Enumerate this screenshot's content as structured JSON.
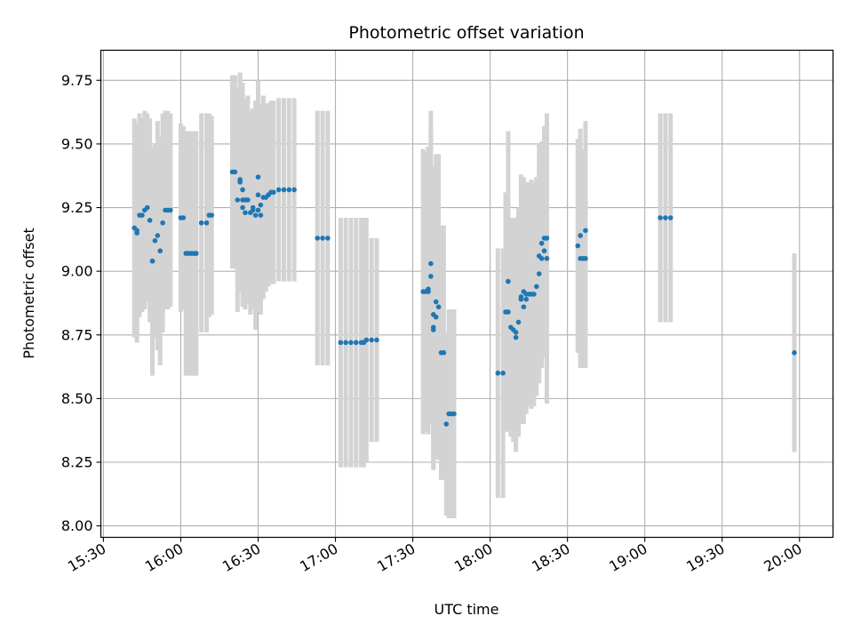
{
  "chart_data": {
    "type": "scatter",
    "title": "Photometric offset variation",
    "xlabel": "UTC time",
    "ylabel": "Photometric offset",
    "xlim": [
      "15:29",
      "20:13"
    ],
    "ylim": [
      7.955,
      9.868
    ],
    "grid": true,
    "x_ticks": [
      "15:30",
      "16:00",
      "16:30",
      "17:00",
      "17:30",
      "18:00",
      "18:30",
      "19:00",
      "19:30",
      "20:00"
    ],
    "y_ticks": [
      "8.00",
      "8.25",
      "8.50",
      "8.75",
      "9.00",
      "9.25",
      "9.50",
      "9.75"
    ],
    "colors": {
      "point": "#1f77b4",
      "errorbar": "#d3d3d3",
      "grid": "#b0b0b0"
    },
    "series": [
      {
        "points": [
          {
            "x": "15:42",
            "y": 9.17,
            "err": 0.43
          },
          {
            "x": "15:43",
            "y": 9.16,
            "err": 0.42
          },
          {
            "x": "15:43",
            "y": 9.15,
            "err": 0.43
          },
          {
            "x": "15:44",
            "y": 9.22,
            "err": 0.4
          },
          {
            "x": "15:45",
            "y": 9.22,
            "err": 0.38
          },
          {
            "x": "15:46",
            "y": 9.24,
            "err": 0.39
          },
          {
            "x": "15:47",
            "y": 9.25,
            "err": 0.37
          },
          {
            "x": "15:48",
            "y": 9.2,
            "err": 0.4
          },
          {
            "x": "15:49",
            "y": 9.04,
            "err": 0.43
          },
          {
            "x": "15:49",
            "y": 9.04,
            "err": 0.45
          },
          {
            "x": "15:50",
            "y": 9.12,
            "err": 0.38
          },
          {
            "x": "15:51",
            "y": 9.14,
            "err": 0.45
          },
          {
            "x": "15:52",
            "y": 9.08,
            "err": 0.45
          },
          {
            "x": "15:53",
            "y": 9.19,
            "err": 0.43
          },
          {
            "x": "15:54",
            "y": 9.24,
            "err": 0.39
          },
          {
            "x": "15:55",
            "y": 9.24,
            "err": 0.39
          },
          {
            "x": "15:56",
            "y": 9.24,
            "err": 0.38
          },
          {
            "x": "16:00",
            "y": 9.21,
            "err": 0.37
          },
          {
            "x": "16:01",
            "y": 9.21,
            "err": 0.36
          },
          {
            "x": "16:02",
            "y": 9.07,
            "err": 0.48
          },
          {
            "x": "16:03",
            "y": 9.07,
            "err": 0.48
          },
          {
            "x": "16:04",
            "y": 9.07,
            "err": 0.48
          },
          {
            "x": "16:05",
            "y": 9.07,
            "err": 0.48
          },
          {
            "x": "16:06",
            "y": 9.07,
            "err": 0.48
          },
          {
            "x": "16:08",
            "y": 9.19,
            "err": 0.43
          },
          {
            "x": "16:10",
            "y": 9.19,
            "err": 0.43
          },
          {
            "x": "16:11",
            "y": 9.22,
            "err": 0.4
          },
          {
            "x": "16:12",
            "y": 9.22,
            "err": 0.39
          },
          {
            "x": "16:20",
            "y": 9.39,
            "err": 0.38
          },
          {
            "x": "16:21",
            "y": 9.39,
            "err": 0.38
          },
          {
            "x": "16:22",
            "y": 9.28,
            "err": 0.44
          },
          {
            "x": "16:23",
            "y": 9.36,
            "err": 0.42
          },
          {
            "x": "16:23",
            "y": 9.35,
            "err": 0.43
          },
          {
            "x": "16:24",
            "y": 9.25,
            "err": 0.39
          },
          {
            "x": "16:24",
            "y": 9.28,
            "err": 0.41
          },
          {
            "x": "16:24",
            "y": 9.32,
            "err": 0.42
          },
          {
            "x": "16:25",
            "y": 9.23,
            "err": 0.38
          },
          {
            "x": "16:25",
            "y": 9.28,
            "err": 0.4
          },
          {
            "x": "16:26",
            "y": 9.28,
            "err": 0.41
          },
          {
            "x": "16:27",
            "y": 9.23,
            "err": 0.4
          },
          {
            "x": "16:28",
            "y": 9.24,
            "err": 0.39
          },
          {
            "x": "16:28",
            "y": 9.25,
            "err": 0.39
          },
          {
            "x": "16:29",
            "y": 9.22,
            "err": 0.45
          },
          {
            "x": "16:30",
            "y": 9.24,
            "err": 0.4
          },
          {
            "x": "16:30",
            "y": 9.37,
            "err": 0.38
          },
          {
            "x": "16:30",
            "y": 9.3,
            "err": 0.39
          },
          {
            "x": "16:31",
            "y": 9.26,
            "err": 0.4
          },
          {
            "x": "16:31",
            "y": 9.22,
            "err": 0.39
          },
          {
            "x": "16:32",
            "y": 9.29,
            "err": 0.4
          },
          {
            "x": "16:33",
            "y": 9.29,
            "err": 0.37
          },
          {
            "x": "16:34",
            "y": 9.3,
            "err": 0.36
          },
          {
            "x": "16:35",
            "y": 9.31,
            "err": 0.36
          },
          {
            "x": "16:36",
            "y": 9.31,
            "err": 0.36
          },
          {
            "x": "16:38",
            "y": 9.32,
            "err": 0.36
          },
          {
            "x": "16:40",
            "y": 9.32,
            "err": 0.36
          },
          {
            "x": "16:42",
            "y": 9.32,
            "err": 0.36
          },
          {
            "x": "16:44",
            "y": 9.32,
            "err": 0.36
          },
          {
            "x": "16:53",
            "y": 9.13,
            "err": 0.5
          },
          {
            "x": "16:55",
            "y": 9.13,
            "err": 0.5
          },
          {
            "x": "16:57",
            "y": 9.13,
            "err": 0.5
          },
          {
            "x": "17:02",
            "y": 8.72,
            "err": 0.49
          },
          {
            "x": "17:04",
            "y": 8.72,
            "err": 0.49
          },
          {
            "x": "17:06",
            "y": 8.72,
            "err": 0.49
          },
          {
            "x": "17:08",
            "y": 8.72,
            "err": 0.49
          },
          {
            "x": "17:10",
            "y": 8.72,
            "err": 0.49
          },
          {
            "x": "17:11",
            "y": 8.72,
            "err": 0.49
          },
          {
            "x": "17:12",
            "y": 8.73,
            "err": 0.48
          },
          {
            "x": "17:14",
            "y": 8.73,
            "err": 0.4
          },
          {
            "x": "17:16",
            "y": 8.73,
            "err": 0.4
          },
          {
            "x": "17:34",
            "y": 8.92,
            "err": 0.56
          },
          {
            "x": "17:35",
            "y": 8.92,
            "err": 0.55
          },
          {
            "x": "17:36",
            "y": 8.92,
            "err": 0.56
          },
          {
            "x": "17:36",
            "y": 8.93,
            "err": 0.56
          },
          {
            "x": "17:37",
            "y": 9.03,
            "err": 0.6
          },
          {
            "x": "17:37",
            "y": 8.98,
            "err": 0.58
          },
          {
            "x": "17:38",
            "y": 8.78,
            "err": 0.56
          },
          {
            "x": "17:38",
            "y": 8.77,
            "err": 0.55
          },
          {
            "x": "17:38",
            "y": 8.83,
            "err": 0.58
          },
          {
            "x": "17:39",
            "y": 8.82,
            "err": 0.56
          },
          {
            "x": "17:39",
            "y": 8.88,
            "err": 0.58
          },
          {
            "x": "17:40",
            "y": 8.86,
            "err": 0.6
          },
          {
            "x": "17:41",
            "y": 8.68,
            "err": 0.5
          },
          {
            "x": "17:42",
            "y": 8.68,
            "err": 0.5
          },
          {
            "x": "17:43",
            "y": 8.4,
            "err": 0.36
          },
          {
            "x": "17:44",
            "y": 8.44,
            "err": 0.41
          },
          {
            "x": "17:45",
            "y": 8.44,
            "err": 0.41
          },
          {
            "x": "17:46",
            "y": 8.44,
            "err": 0.41
          },
          {
            "x": "18:03",
            "y": 8.6,
            "err": 0.49
          },
          {
            "x": "18:05",
            "y": 8.6,
            "err": 0.49
          },
          {
            "x": "18:06",
            "y": 8.84,
            "err": 0.47
          },
          {
            "x": "18:07",
            "y": 8.84,
            "err": 0.47
          },
          {
            "x": "18:07",
            "y": 8.96,
            "err": 0.59
          },
          {
            "x": "18:08",
            "y": 8.78,
            "err": 0.43
          },
          {
            "x": "18:09",
            "y": 8.77,
            "err": 0.44
          },
          {
            "x": "18:10",
            "y": 8.76,
            "err": 0.45
          },
          {
            "x": "18:10",
            "y": 8.74,
            "err": 0.45
          },
          {
            "x": "18:11",
            "y": 8.8,
            "err": 0.45
          },
          {
            "x": "18:12",
            "y": 8.89,
            "err": 0.49
          },
          {
            "x": "18:12",
            "y": 8.9,
            "err": 0.46
          },
          {
            "x": "18:13",
            "y": 8.92,
            "err": 0.45
          },
          {
            "x": "18:13",
            "y": 8.86,
            "err": 0.46
          },
          {
            "x": "18:14",
            "y": 8.91,
            "err": 0.44
          },
          {
            "x": "18:14",
            "y": 8.89,
            "err": 0.45
          },
          {
            "x": "18:15",
            "y": 8.91,
            "err": 0.44
          },
          {
            "x": "18:16",
            "y": 8.91,
            "err": 0.45
          },
          {
            "x": "18:17",
            "y": 8.91,
            "err": 0.44
          },
          {
            "x": "18:18",
            "y": 8.94,
            "err": 0.43
          },
          {
            "x": "18:19",
            "y": 8.99,
            "err": 0.43
          },
          {
            "x": "18:19",
            "y": 9.06,
            "err": 0.44
          },
          {
            "x": "18:20",
            "y": 9.11,
            "err": 0.4
          },
          {
            "x": "18:20",
            "y": 9.05,
            "err": 0.43
          },
          {
            "x": "18:21",
            "y": 9.08,
            "err": 0.42
          },
          {
            "x": "18:21",
            "y": 9.13,
            "err": 0.44
          },
          {
            "x": "18:22",
            "y": 9.05,
            "err": 0.57
          },
          {
            "x": "18:22",
            "y": 9.13,
            "err": 0.49
          },
          {
            "x": "18:34",
            "y": 9.1,
            "err": 0.42
          },
          {
            "x": "18:35",
            "y": 9.14,
            "err": 0.42
          },
          {
            "x": "18:35",
            "y": 9.05,
            "err": 0.43
          },
          {
            "x": "18:36",
            "y": 9.05,
            "err": 0.43
          },
          {
            "x": "18:37",
            "y": 9.05,
            "err": 0.43
          },
          {
            "x": "18:37",
            "y": 9.16,
            "err": 0.43
          },
          {
            "x": "19:06",
            "y": 9.21,
            "err": 0.41
          },
          {
            "x": "19:08",
            "y": 9.21,
            "err": 0.41
          },
          {
            "x": "19:10",
            "y": 9.21,
            "err": 0.41
          },
          {
            "x": "19:58",
            "y": 8.68,
            "err": 0.39
          }
        ]
      }
    ]
  }
}
